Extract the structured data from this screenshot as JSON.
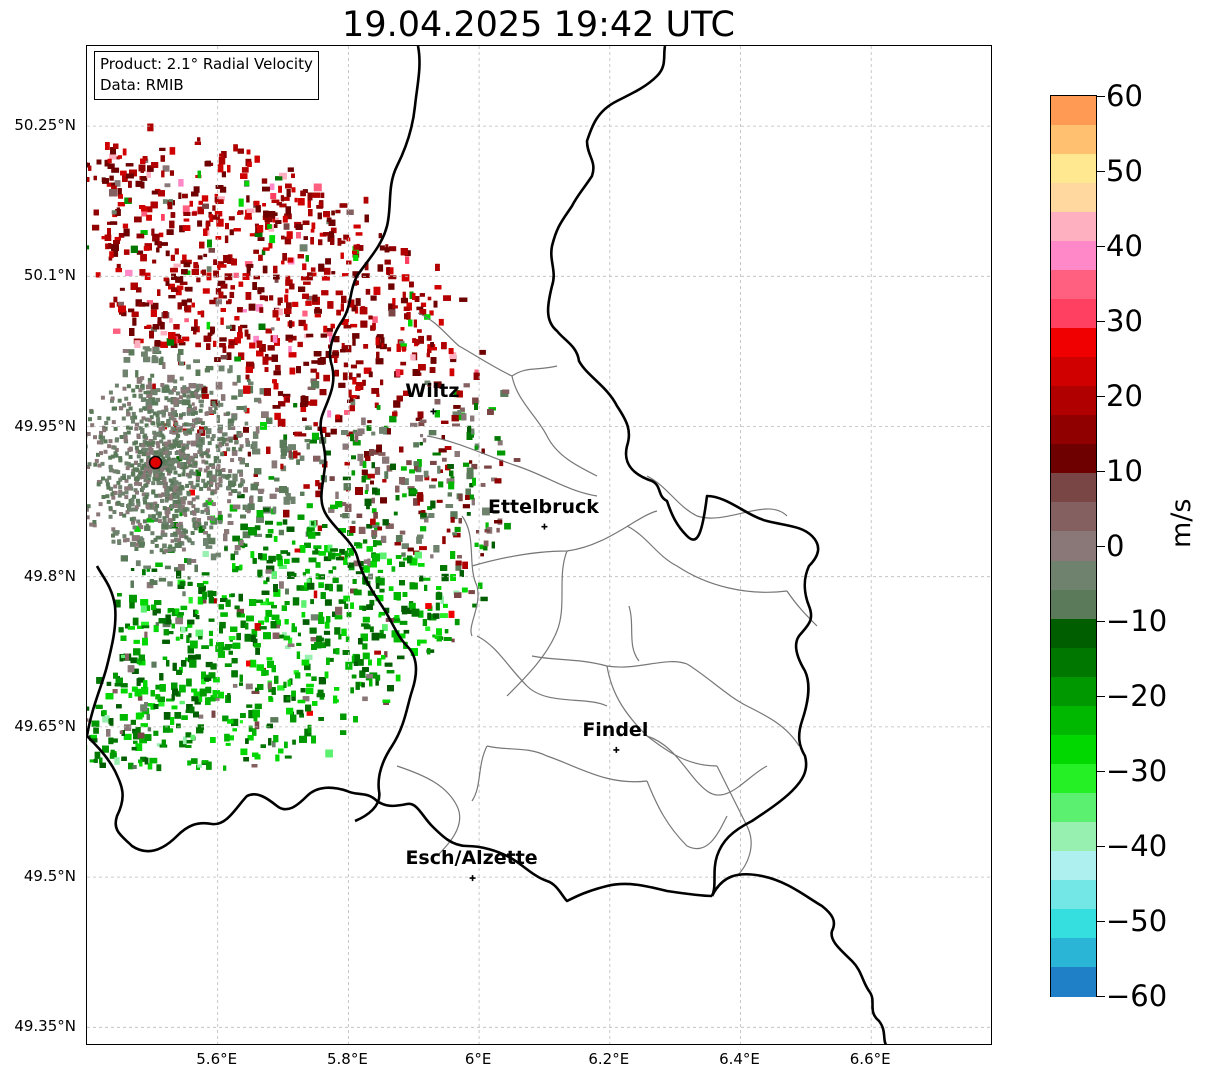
{
  "title": "19.04.2025 19:42 UTC",
  "info": {
    "product": "Product: 2.1° Radial Velocity",
    "data": "Data: RMIB"
  },
  "lat_labels": [
    "50.25°N",
    "50.1°N",
    "49.95°N",
    "49.8°N",
    "49.65°N",
    "49.5°N",
    "49.35°N"
  ],
  "lon_labels": [
    "5.6°E",
    "5.8°E",
    "6°E",
    "6.2°E",
    "6.4°E",
    "6.6°E"
  ],
  "cities": [
    {
      "name": "Wiltz",
      "lon": 5.93,
      "lat": 49.965
    },
    {
      "name": "Ettelbruck",
      "lon": 6.1,
      "lat": 49.85
    },
    {
      "name": "Findel",
      "lon": 6.21,
      "lat": 49.627
    },
    {
      "name": "Esch/Alzette",
      "lon": 5.99,
      "lat": 49.499
    }
  ],
  "radar_site": {
    "lon": 5.505,
    "lat": 49.914,
    "color": "#e00000"
  },
  "colorbar": {
    "unit": "m/s",
    "min": -60,
    "max": 60,
    "tick_labels": [
      "60",
      "50",
      "40",
      "30",
      "20",
      "10",
      "0",
      "−10",
      "−20",
      "−30",
      "−40",
      "−50",
      "−60"
    ],
    "tick_values": [
      60,
      50,
      40,
      30,
      20,
      10,
      0,
      -10,
      -20,
      -30,
      -40,
      -50,
      -60
    ],
    "colors": {
      "approaching": [
        "#1f7fc7",
        "#2ab4d6",
        "#35dfe0",
        "#73e6e6",
        "#aef0f0",
        "#98f0b0",
        "#5cf070",
        "#25f025",
        "#00d800",
        "#00b800",
        "#009800",
        "#007800",
        "#005e00"
      ],
      "near_zero": [
        "#5a7a5a",
        "#6e826e",
        "#8a7878",
        "#856060",
        "#7a4545"
      ],
      "receding": [
        "#6e0000",
        "#900000",
        "#b00000",
        "#d00000",
        "#f00000",
        "#ff4060",
        "#ff6080",
        "#ff88c8",
        "#ffb0c0",
        "#ffd8a0",
        "#ffe890",
        "#ffc070",
        "#ff9a55"
      ]
    }
  }
}
